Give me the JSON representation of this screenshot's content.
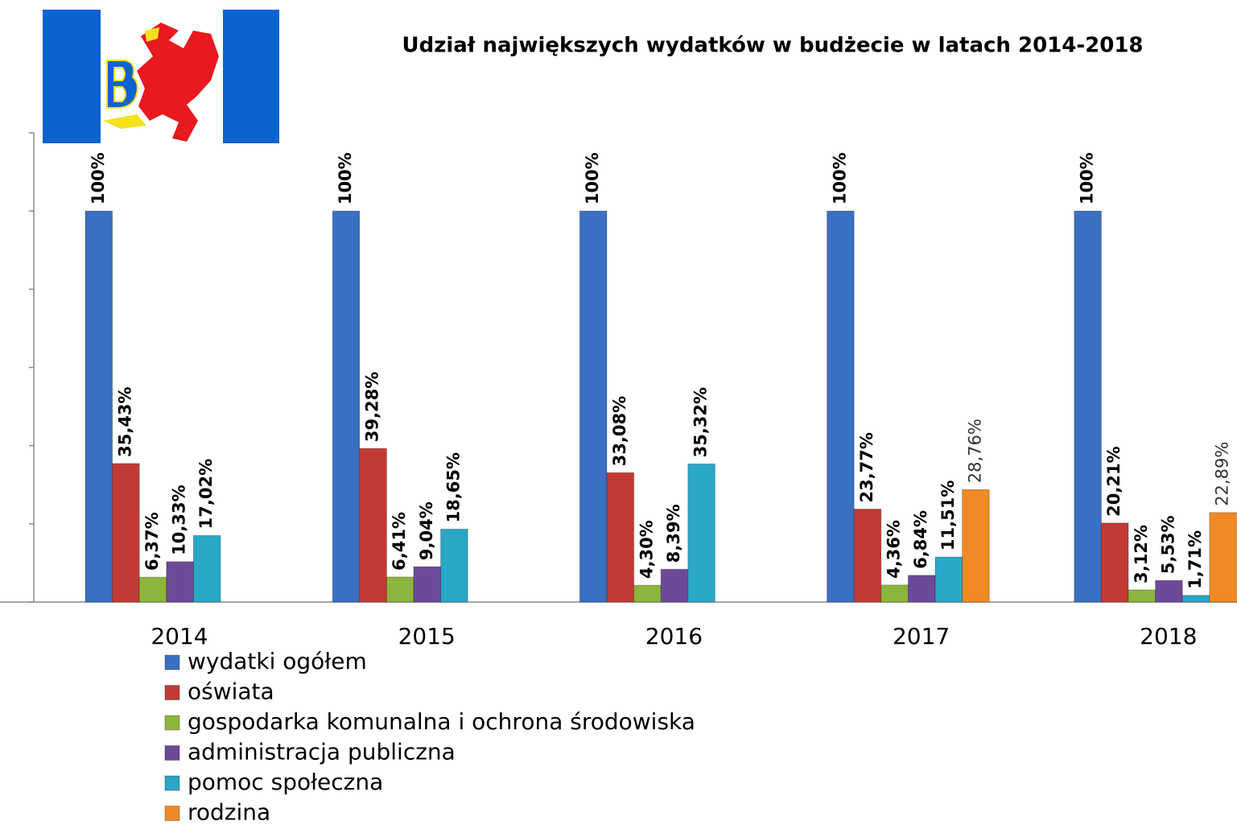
{
  "chart_data": {
    "type": "bar",
    "title": "Udział największych wydatków w budżecie w latach 2014-2018",
    "categories": [
      "2014",
      "2015",
      "2016",
      "2017",
      "2018"
    ],
    "series": [
      {
        "name": "wydatki ogółem",
        "color": "#3b6fc1",
        "values": [
          100,
          100,
          100,
          100,
          100
        ],
        "value_labels": [
          "100%",
          "100%",
          "100%",
          "100%",
          "100%"
        ]
      },
      {
        "name": "oświata",
        "color": "#c23a35",
        "values": [
          35.43,
          39.28,
          33.08,
          23.77,
          20.21
        ],
        "value_labels": [
          "35,43%",
          "39,28%",
          "33,08%",
          "23,77%",
          "20,21%"
        ]
      },
      {
        "name": "gospodarka komunalna i ochrona środowiska",
        "color": "#8db53c",
        "values": [
          6.37,
          6.41,
          4.3,
          4.36,
          3.12
        ],
        "value_labels": [
          "6,37%",
          "6,41%",
          "4,30%",
          "4,36%",
          "3,12%"
        ]
      },
      {
        "name": "administracja publiczna",
        "color": "#6d4a98",
        "values": [
          10.33,
          9.04,
          8.39,
          6.84,
          5.53
        ],
        "value_labels": [
          "10,33%",
          "9,04%",
          "8,39%",
          "6,84%",
          "5,53%"
        ]
      },
      {
        "name": "pomoc społeczna",
        "color": "#2aa6c6",
        "values": [
          17.02,
          18.65,
          35.32,
          11.51,
          1.71
        ],
        "value_labels": [
          "17,02%",
          "18,65%",
          "35,32%",
          "11,51%",
          "1,71%"
        ]
      },
      {
        "name": "rodzina",
        "color": "#ef8a26",
        "values": [
          null,
          null,
          null,
          28.76,
          22.89
        ],
        "value_labels": [
          null,
          null,
          null,
          "28,76%",
          "22,89%"
        ]
      }
    ],
    "ylim": [
      0,
      120
    ],
    "yticks": [
      0,
      20,
      40,
      60,
      80,
      100,
      120
    ],
    "grid": false,
    "legend": "bottom-left"
  }
}
